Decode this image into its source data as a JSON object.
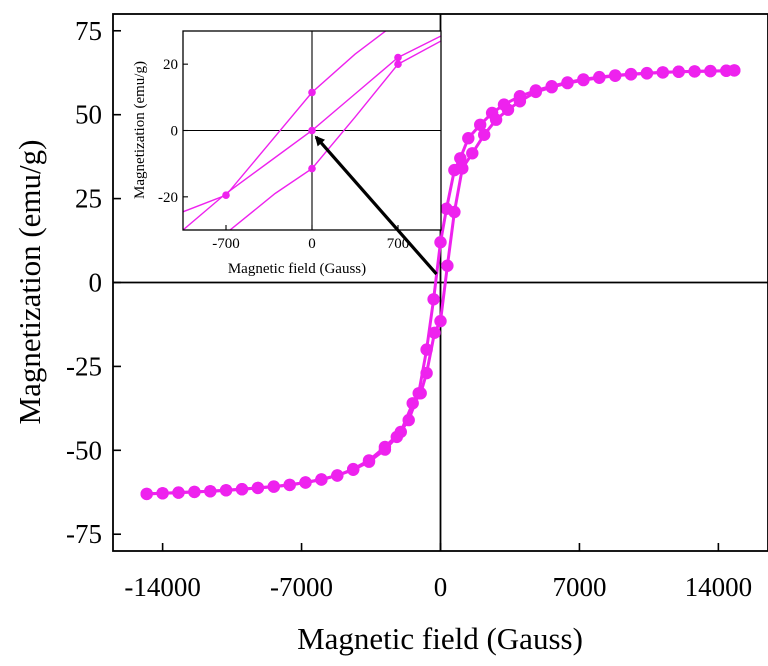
{
  "chart_data": {
    "type": "scatter",
    "title": "",
    "xlabel": "Magnetic field (Gauss)",
    "ylabel": "Magnetization (emu/g)",
    "xlim": [
      -16500,
      16500
    ],
    "ylim": [
      -80,
      80
    ],
    "xticks": [
      -14000,
      -7000,
      0,
      7000,
      14000
    ],
    "xtick_labels": [
      "-14000",
      "-7000",
      "0",
      "7000",
      "14000"
    ],
    "yticks": [
      -75,
      -50,
      -25,
      0,
      25,
      50,
      75
    ],
    "ytick_labels": [
      "-75",
      "-50",
      "-25",
      "0",
      "25",
      "50",
      "75"
    ],
    "grid": false,
    "zero_lines": true,
    "color": "#ee22ee",
    "series": [
      {
        "points": [
          [
            -14800,
            -63.0
          ],
          [
            -14000,
            -62.8
          ],
          [
            -13200,
            -62.6
          ],
          [
            -12400,
            -62.4
          ],
          [
            -11600,
            -62.2
          ],
          [
            -10800,
            -61.9
          ],
          [
            -10000,
            -61.6
          ],
          [
            -9200,
            -61.2
          ],
          [
            -8400,
            -60.8
          ],
          [
            -7600,
            -60.3
          ],
          [
            -6800,
            -59.6
          ],
          [
            -6000,
            -58.7
          ],
          [
            -5200,
            -57.5
          ],
          [
            -4400,
            -55.8
          ],
          [
            -3600,
            -53.4
          ],
          [
            -2800,
            -49.8
          ],
          [
            -2200,
            -46.0
          ],
          [
            -1600,
            -41.0
          ],
          [
            -1100,
            -33.0
          ],
          [
            -700,
            -20.0
          ],
          [
            -350,
            -5.0
          ],
          [
            0,
            12.0
          ],
          [
            300,
            22.0
          ],
          [
            700,
            33.5
          ],
          [
            1000,
            37.0
          ],
          [
            1400,
            43.0
          ],
          [
            2000,
            47.0
          ],
          [
            2600,
            50.5
          ],
          [
            3200,
            53.0
          ],
          [
            4000,
            55.5
          ],
          [
            4800,
            57.2
          ],
          [
            5600,
            58.5
          ],
          [
            6400,
            59.6
          ],
          [
            7200,
            60.5
          ],
          [
            8000,
            61.2
          ],
          [
            8800,
            61.7
          ],
          [
            9600,
            62.1
          ],
          [
            10400,
            62.4
          ],
          [
            11200,
            62.6
          ],
          [
            12000,
            62.8
          ],
          [
            12800,
            62.9
          ],
          [
            13600,
            63.0
          ],
          [
            14400,
            63.1
          ],
          [
            14800,
            63.2
          ]
        ]
      },
      {
        "points": [
          [
            -14800,
            -63.0
          ],
          [
            -14000,
            -62.8
          ],
          [
            -13200,
            -62.6
          ],
          [
            -12400,
            -62.4
          ],
          [
            -11600,
            -62.2
          ],
          [
            -10800,
            -61.9
          ],
          [
            -10000,
            -61.6
          ],
          [
            -9200,
            -61.2
          ],
          [
            -8400,
            -60.8
          ],
          [
            -7600,
            -60.3
          ],
          [
            -6800,
            -59.6
          ],
          [
            -6000,
            -58.7
          ],
          [
            -5200,
            -57.5
          ],
          [
            -4400,
            -55.6
          ],
          [
            -3600,
            -53.0
          ],
          [
            -2800,
            -49.0
          ],
          [
            -2000,
            -44.5
          ],
          [
            -1400,
            -36.0
          ],
          [
            -1000,
            -33.0
          ],
          [
            -700,
            -27.0
          ],
          [
            -300,
            -15.0
          ],
          [
            0,
            -11.5
          ],
          [
            350,
            5.0
          ],
          [
            700,
            21.0
          ],
          [
            1100,
            34.0
          ],
          [
            1600,
            38.5
          ],
          [
            2200,
            44.0
          ],
          [
            2800,
            48.5
          ],
          [
            3400,
            51.5
          ],
          [
            4000,
            54.0
          ],
          [
            4800,
            56.8
          ],
          [
            5600,
            58.2
          ],
          [
            6400,
            59.4
          ],
          [
            7200,
            60.3
          ],
          [
            8000,
            61.0
          ],
          [
            8800,
            61.6
          ],
          [
            9600,
            62.0
          ],
          [
            10400,
            62.3
          ],
          [
            11200,
            62.6
          ],
          [
            12000,
            62.8
          ],
          [
            12800,
            62.9
          ],
          [
            13600,
            63.0
          ],
          [
            14400,
            63.1
          ],
          [
            14800,
            63.2
          ]
        ]
      }
    ],
    "inset": {
      "xlabel": "Magnetic field (Gauss)",
      "ylabel": "Magnetization (emu/g)",
      "xlim": [
        -1050,
        1050
      ],
      "ylim": [
        -30,
        30
      ],
      "xticks": [
        -700,
        0,
        700
      ],
      "xtick_labels": [
        "-700",
        "0",
        "700"
      ],
      "yticks": [
        -20,
        0,
        20
      ],
      "ytick_labels": [
        "-20",
        "0",
        "20"
      ],
      "lines": [
        [
          [
            -1050,
            -24.5
          ],
          [
            -700,
            -19.5
          ],
          [
            -350,
            -4.0
          ],
          [
            0,
            11.5
          ],
          [
            350,
            23.0
          ],
          [
            600,
            30.0
          ]
        ],
        [
          [
            -1050,
            -40.0
          ],
          [
            -700,
            -31.0
          ],
          [
            -300,
            -19.0
          ],
          [
            0,
            -11.5
          ],
          [
            350,
            4.0
          ],
          [
            700,
            20.0
          ],
          [
            1050,
            27.0
          ]
        ],
        [
          [
            -1050,
            -30.0
          ],
          [
            -700,
            -19.0
          ],
          [
            -350,
            -9.5
          ],
          [
            0,
            0.0
          ],
          [
            350,
            11.0
          ],
          [
            700,
            22.0
          ],
          [
            1050,
            28.5
          ]
        ]
      ],
      "markers": [
        [
          -700,
          -19.5
        ],
        [
          0,
          11.5
        ],
        [
          0,
          0.0
        ],
        [
          0,
          -11.5
        ],
        [
          700,
          22.0
        ],
        [
          700,
          20.0
        ]
      ]
    },
    "annotation": {
      "type": "arrow",
      "from": [
        -200,
        2.5
      ],
      "to": [
        -780,
        55.5
      ],
      "to_units": "inset data"
    }
  }
}
